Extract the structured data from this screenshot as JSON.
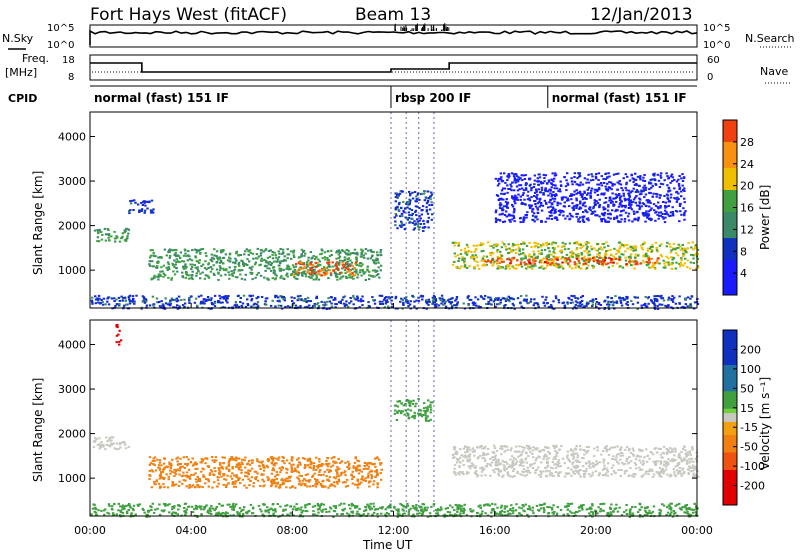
{
  "header": {
    "station": "Fort Hays West (fitACF)",
    "beam": "Beam 13",
    "date": "12/Jan/2013"
  },
  "top_strips": {
    "nsky_label": "N.Sky",
    "nsearch_label": "N.Search",
    "noise_ticks_left": [
      "10^5",
      "10^0"
    ],
    "noise_ticks_right": [
      "10^5",
      "10^0"
    ],
    "freq_label": "Freq.",
    "freq_unit": "[MHz]",
    "freq_ticks": [
      "18",
      "8"
    ],
    "nave_ticks": [
      "60",
      "0"
    ],
    "nave_label": "Nave",
    "cpid_label": "CPID",
    "cpid_segments": [
      {
        "label": "normal (fast) 151 IF",
        "start_hour": 0,
        "end_hour": 11.9
      },
      {
        "label": "rbsp 200 IF",
        "start_hour": 11.9,
        "end_hour": 18.1
      },
      {
        "label": "normal (fast) 151 IF",
        "start_hour": 18.1,
        "end_hour": 24
      }
    ]
  },
  "chart_data": [
    {
      "type": "heatmap",
      "name": "power",
      "xlabel": "",
      "ylabel": "Slant Range [km]",
      "xlim": [
        0,
        24
      ],
      "ylim": [
        150,
        4550
      ],
      "y_ticks": [
        "4000",
        "3000",
        "2000",
        "1000"
      ],
      "colorbar": {
        "label": "Power [dB]",
        "ticks": [
          "28",
          "24",
          "20",
          "16",
          "12",
          "8",
          "4"
        ],
        "range": [
          0,
          30
        ]
      },
      "echo_regions": [
        {
          "t_start": 0.1,
          "t_end": 1.5,
          "range_start": 1650,
          "range_end": 1950,
          "power": 14
        },
        {
          "t_start": 1.5,
          "t_end": 2.5,
          "range_start": 2300,
          "range_end": 2600,
          "power": 8
        },
        {
          "t_start": 2.3,
          "t_end": 11.5,
          "range_start": 800,
          "range_end": 1500,
          "power": 14
        },
        {
          "t_start": 8.0,
          "t_end": 10.5,
          "range_start": 900,
          "range_end": 1200,
          "power": 26
        },
        {
          "t_start": 12.0,
          "t_end": 13.5,
          "range_start": 1900,
          "range_end": 2800,
          "power": 8
        },
        {
          "t_start": 14.3,
          "t_end": 24,
          "range_start": 1050,
          "range_end": 1650,
          "power": 18
        },
        {
          "t_start": 15.5,
          "t_end": 22.5,
          "range_start": 1150,
          "range_end": 1300,
          "power": 28
        },
        {
          "t_start": 16.0,
          "t_end": 23.5,
          "range_start": 2100,
          "range_end": 3200,
          "power": 4
        },
        {
          "t_start": 0,
          "t_end": 24,
          "range_start": 150,
          "range_end": 450,
          "power": 8
        }
      ]
    },
    {
      "type": "heatmap",
      "name": "velocity",
      "xlabel": "Time UT",
      "ylabel": "Slant Range [km]",
      "xlim": [
        0,
        24
      ],
      "ylim": [
        150,
        4550
      ],
      "x_ticks": [
        "00:00",
        "04:00",
        "08:00",
        "12:00",
        "16:00",
        "20:00",
        "00:00"
      ],
      "y_ticks": [
        "4000",
        "3000",
        "2000",
        "1000"
      ],
      "colorbar": {
        "label": "Velocity [m s⁻¹]",
        "ticks": [
          "200",
          "100",
          "50",
          "15",
          "-15",
          "-50",
          "-100",
          "-200"
        ],
        "range": [
          -250,
          250
        ]
      },
      "echo_regions": [
        {
          "t_start": 0.1,
          "t_end": 1.5,
          "range_start": 1650,
          "range_end": 1950,
          "velocity": 0
        },
        {
          "t_start": 2.3,
          "t_end": 11.5,
          "range_start": 800,
          "range_end": 1500,
          "velocity": -60
        },
        {
          "t_start": 14.3,
          "t_end": 24,
          "range_start": 1050,
          "range_end": 1750,
          "velocity": 0
        },
        {
          "t_start": 12.0,
          "t_end": 13.5,
          "range_start": 2300,
          "range_end": 2800,
          "velocity": 60
        },
        {
          "t_start": 0,
          "t_end": 24,
          "range_start": 150,
          "range_end": 450,
          "velocity": 40
        },
        {
          "t_start": 1.0,
          "t_end": 1.2,
          "range_start": 4000,
          "range_end": 4500,
          "velocity": -220
        }
      ]
    }
  ]
}
